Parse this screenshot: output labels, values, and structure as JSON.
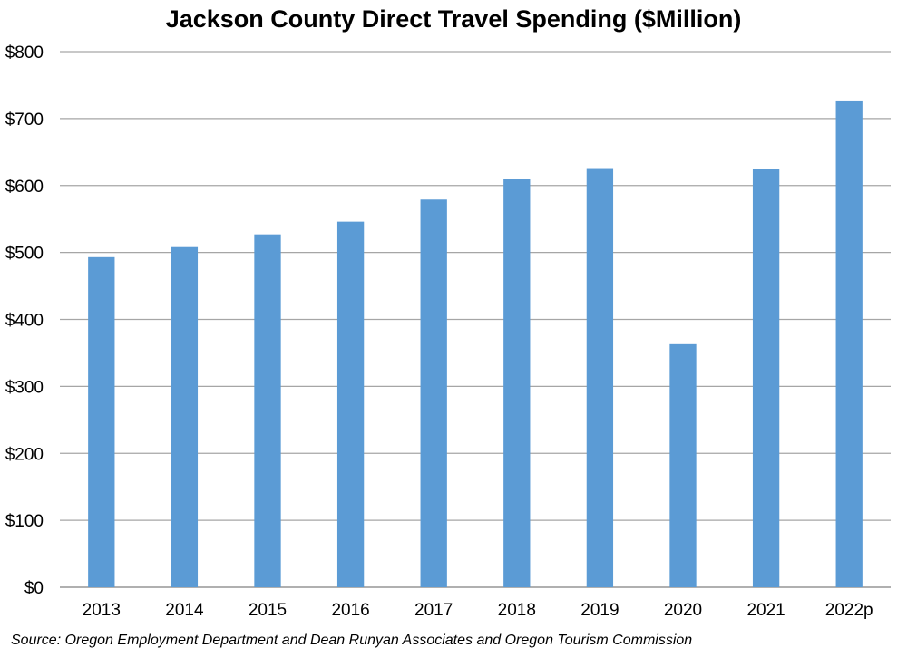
{
  "chart_data": {
    "type": "bar",
    "title": "Jackson County Direct Travel Spending ($Million)",
    "categories": [
      "2013",
      "2014",
      "2015",
      "2016",
      "2017",
      "2018",
      "2019",
      "2020",
      "2021",
      "2022p"
    ],
    "values": [
      493,
      508,
      527,
      546,
      579,
      610,
      626,
      363,
      625,
      727
    ],
    "ylim": [
      0,
      800
    ],
    "yticks": [
      0,
      100,
      200,
      300,
      400,
      500,
      600,
      700,
      800
    ],
    "ytick_labels": [
      "$0",
      "$100",
      "$200",
      "$300",
      "$400",
      "$500",
      "$600",
      "$700",
      "$800"
    ],
    "grid": true,
    "bar_color": "#5b9bd5",
    "grid_color": "#a6a6a6",
    "source": "Source: Oregon Employment Department and Dean Runyan Associates and Oregon Tourism Commission"
  }
}
